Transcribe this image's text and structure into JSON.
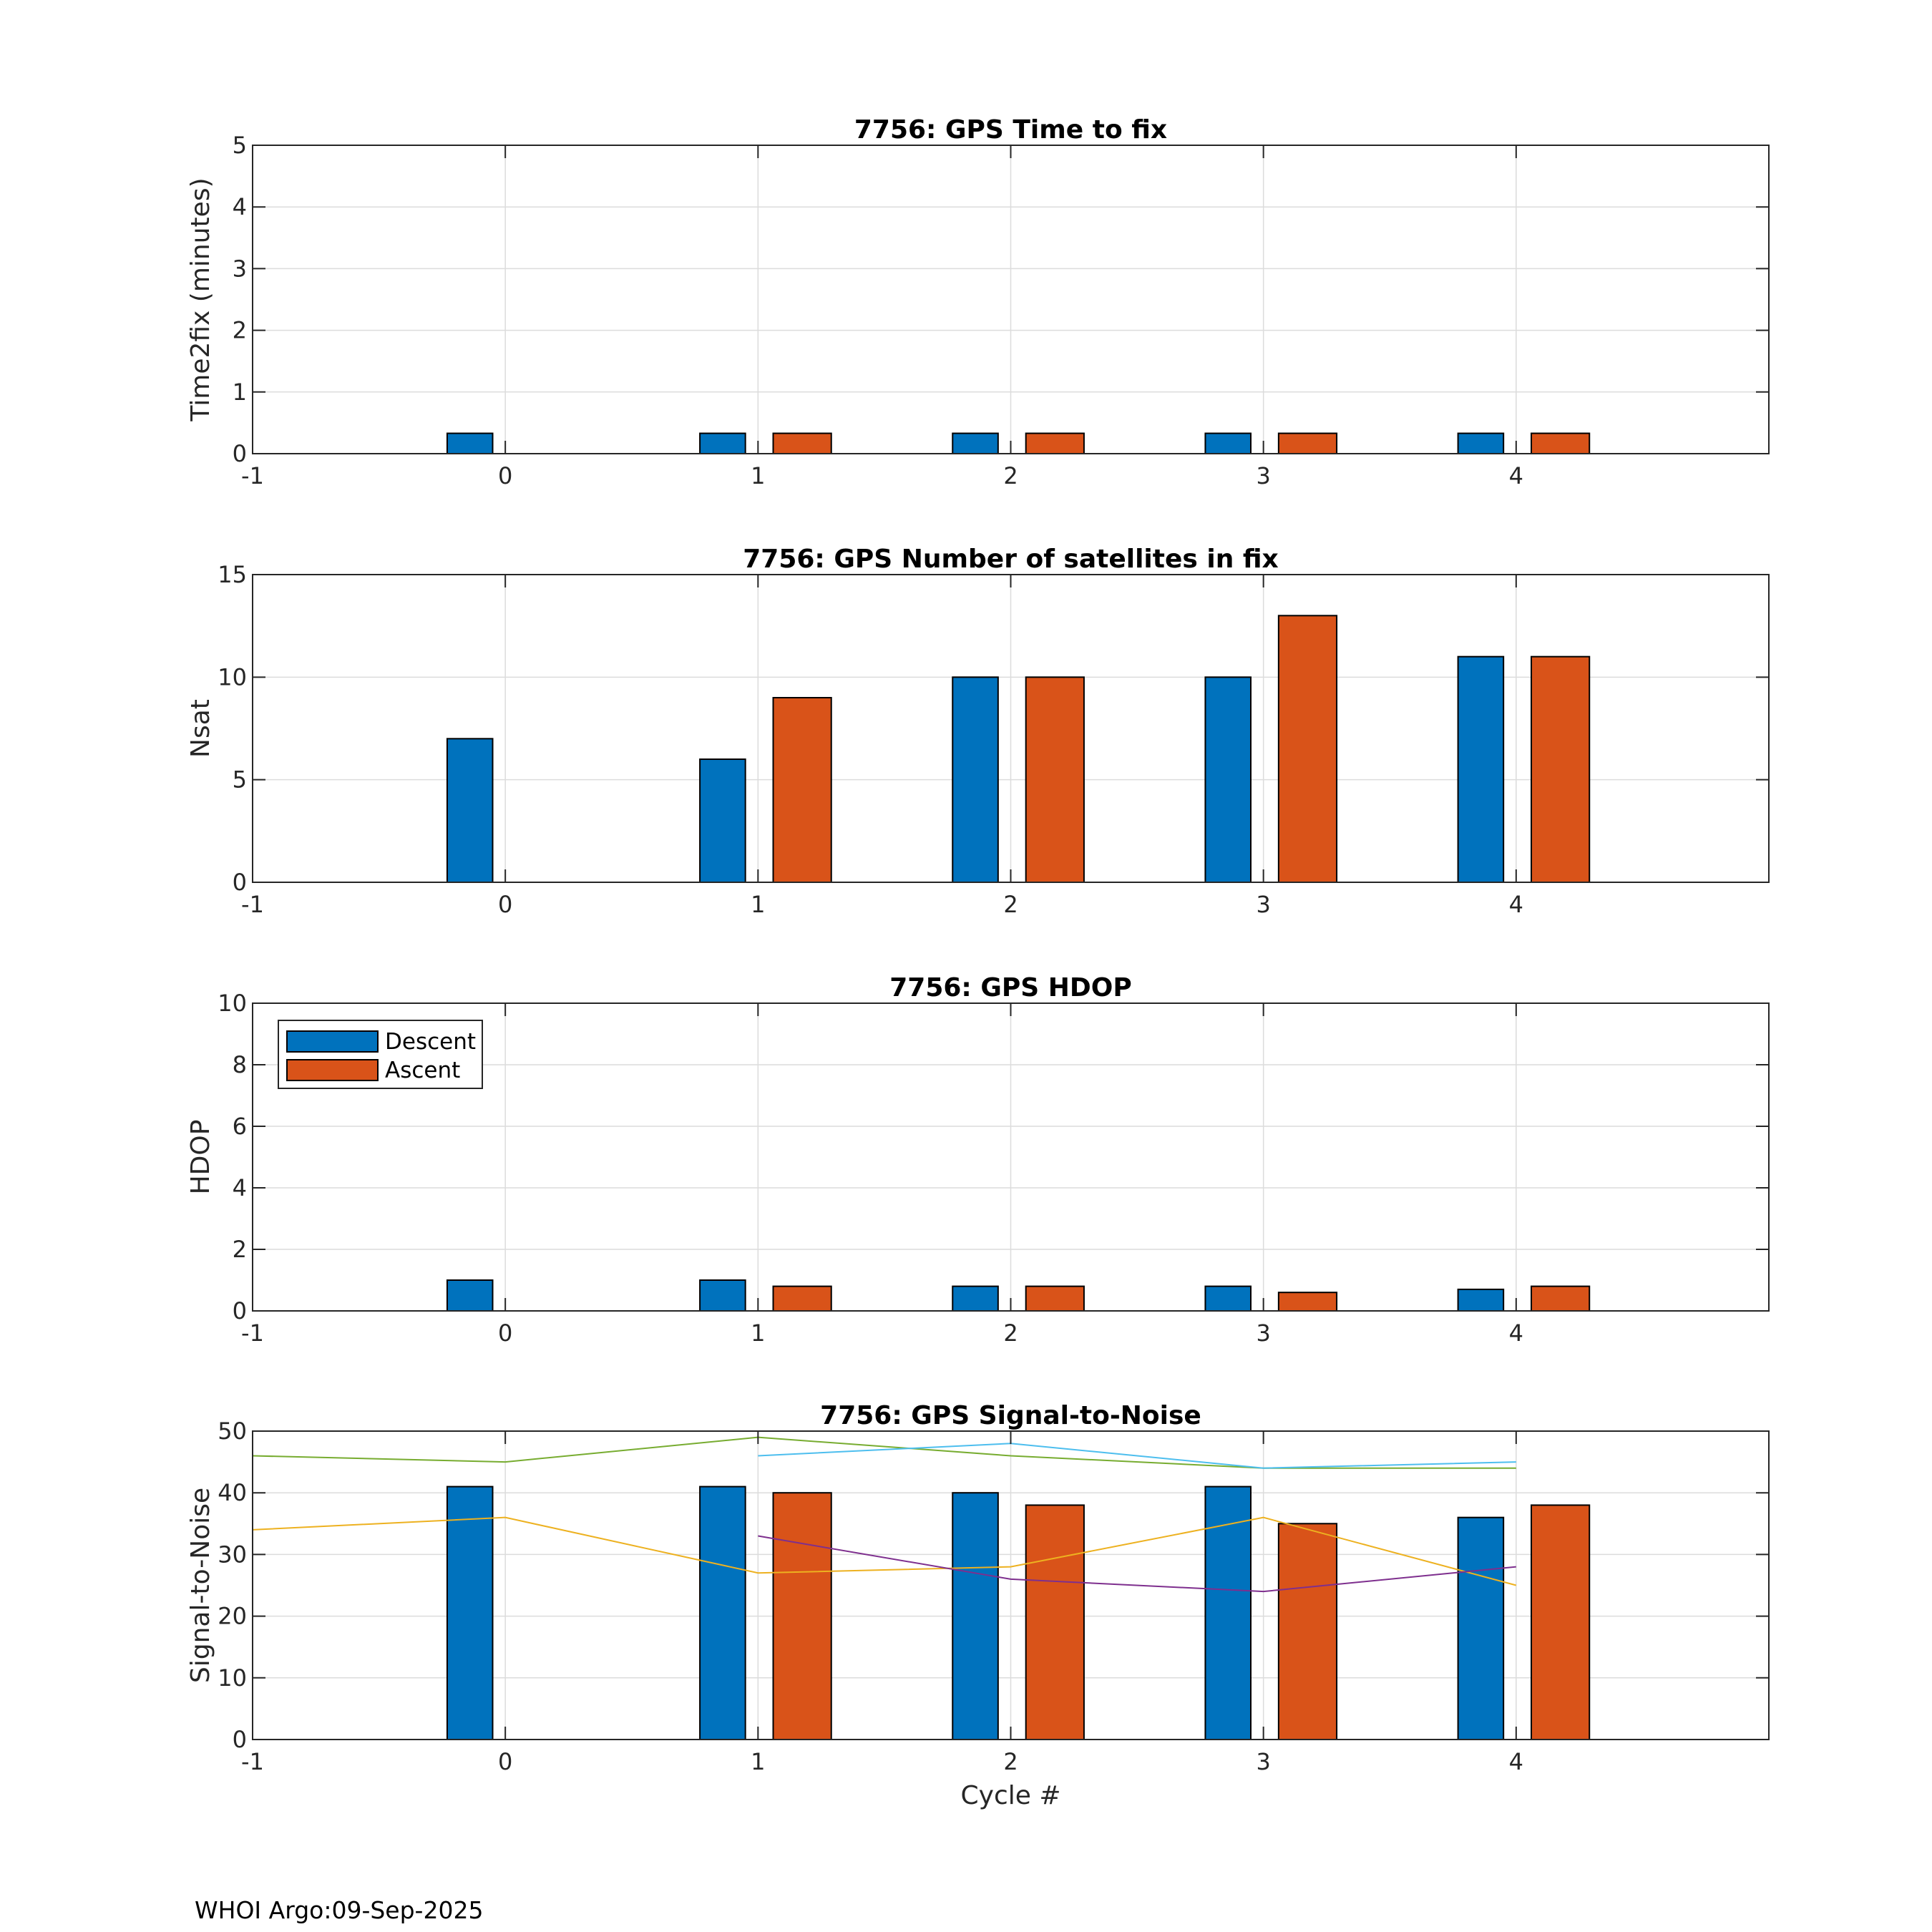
{
  "colors": {
    "descent": "#0072BD",
    "ascent": "#D95319",
    "snr_line_1": "#77AC30",
    "snr_line_2": "#4DBEEE",
    "snr_line_3": "#EDB120",
    "snr_line_4": "#7E2F8E"
  },
  "legend": {
    "descent": "Descent",
    "ascent": "Ascent"
  },
  "footer": "WHOI Argo:09-Sep-2025",
  "chart_data": [
    {
      "type": "bar",
      "title": "7756: GPS Time to fix",
      "xlabel": "",
      "ylabel": "Time2fix (minutes)",
      "xlim": [
        -1,
        5
      ],
      "ylim": [
        0,
        5
      ],
      "xticks": [
        "-1",
        "0",
        "1",
        "2",
        "3",
        "4"
      ],
      "yticks": [
        "0",
        "1",
        "2",
        "3",
        "4",
        "5"
      ],
      "grid": true,
      "categories": [
        0,
        1,
        2,
        3,
        4
      ],
      "series": [
        {
          "name": "Descent",
          "values": [
            0.33,
            0.33,
            0.33,
            0.33,
            0.33
          ]
        },
        {
          "name": "Ascent",
          "values": [
            null,
            0.33,
            0.33,
            0.33,
            0.33
          ]
        }
      ]
    },
    {
      "type": "bar",
      "title": "7756: GPS Number of satellites in fix",
      "xlabel": "",
      "ylabel": "Nsat",
      "xlim": [
        -1,
        5
      ],
      "ylim": [
        0,
        15
      ],
      "xticks": [
        "-1",
        "0",
        "1",
        "2",
        "3",
        "4"
      ],
      "yticks": [
        "0",
        "5",
        "10",
        "15"
      ],
      "grid": true,
      "categories": [
        0,
        1,
        2,
        3,
        4
      ],
      "series": [
        {
          "name": "Descent",
          "values": [
            7,
            6,
            10,
            10,
            11
          ]
        },
        {
          "name": "Ascent",
          "values": [
            null,
            9,
            10,
            13,
            11
          ]
        }
      ]
    },
    {
      "type": "bar",
      "title": "7756: GPS HDOP",
      "xlabel": "",
      "ylabel": "HDOP",
      "xlim": [
        -1,
        5
      ],
      "ylim": [
        0,
        10
      ],
      "xticks": [
        "-1",
        "0",
        "1",
        "2",
        "3",
        "4"
      ],
      "yticks": [
        "0",
        "2",
        "4",
        "6",
        "8",
        "10"
      ],
      "grid": true,
      "legend": "top-left",
      "categories": [
        0,
        1,
        2,
        3,
        4
      ],
      "series": [
        {
          "name": "Descent",
          "values": [
            1.0,
            1.0,
            0.8,
            0.8,
            0.7
          ]
        },
        {
          "name": "Ascent",
          "values": [
            null,
            0.8,
            0.8,
            0.6,
            0.8
          ]
        }
      ]
    },
    {
      "type": "bar",
      "title": "7756: GPS Signal-to-Noise",
      "xlabel": "Cycle #",
      "ylabel": "Signal-to-Noise",
      "xlim": [
        -1,
        5
      ],
      "ylim": [
        0,
        50
      ],
      "xticks": [
        "-1",
        "0",
        "1",
        "2",
        "3",
        "4"
      ],
      "yticks": [
        "0",
        "10",
        "20",
        "30",
        "40",
        "50"
      ],
      "grid": true,
      "categories": [
        0,
        1,
        2,
        3,
        4
      ],
      "series": [
        {
          "name": "Descent",
          "values": [
            41,
            41,
            40,
            41,
            36
          ]
        },
        {
          "name": "Ascent",
          "values": [
            null,
            40,
            38,
            35,
            38
          ]
        }
      ],
      "lines": [
        {
          "color_key": "snr_line_1",
          "x": [
            -1,
            0,
            1,
            2,
            3,
            4
          ],
          "y": [
            46,
            45,
            49,
            46,
            44,
            44
          ]
        },
        {
          "color_key": "snr_line_2",
          "x": [
            1,
            2,
            3,
            4
          ],
          "y": [
            46,
            48,
            44,
            45
          ]
        },
        {
          "color_key": "snr_line_3",
          "x": [
            -1,
            0,
            1,
            2,
            3,
            4
          ],
          "y": [
            34,
            36,
            27,
            28,
            36,
            25
          ]
        },
        {
          "color_key": "snr_line_4",
          "x": [
            1,
            2,
            3,
            4
          ],
          "y": [
            33,
            26,
            24,
            28
          ]
        }
      ]
    }
  ]
}
